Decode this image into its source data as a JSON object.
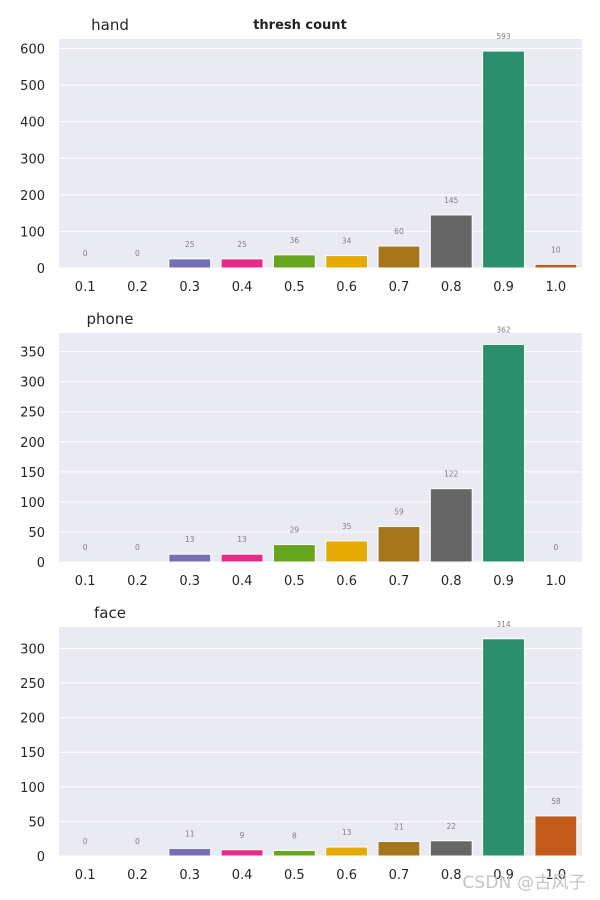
{
  "figure_title": "thresh count",
  "watermark": "CSDN @古风子",
  "colors": {
    "plot_background": "#eaeaf2",
    "grid": "#ffffff",
    "bar_edge": "#ffffff",
    "bars": [
      "#1b9e77",
      "#d95f02",
      "#7570b3",
      "#e7298a",
      "#66a61e",
      "#e6ab02",
      "#a6761d",
      "#666666",
      "#2b8f6e",
      "#c25b1a"
    ]
  },
  "chart_data": [
    {
      "type": "bar",
      "title": "hand",
      "categories": [
        "0.1",
        "0.2",
        "0.3",
        "0.4",
        "0.5",
        "0.6",
        "0.7",
        "0.8",
        "0.9",
        "1.0"
      ],
      "values": [
        0,
        0,
        25,
        25,
        36,
        34,
        60,
        145,
        593,
        10
      ],
      "value_labels": [
        "0",
        "0",
        "25",
        "25",
        "36",
        "34",
        "60",
        "145",
        "593",
        "10"
      ],
      "yticks": [
        0,
        100,
        200,
        300,
        400,
        500,
        600
      ],
      "ytick_labels": [
        "0",
        "100",
        "200",
        "300",
        "400",
        "500",
        "600"
      ],
      "ylim": [
        0,
        626
      ],
      "xlabel": "",
      "ylabel": ""
    },
    {
      "type": "bar",
      "title": "phone",
      "categories": [
        "0.1",
        "0.2",
        "0.3",
        "0.4",
        "0.5",
        "0.6",
        "0.7",
        "0.8",
        "0.9",
        "1.0"
      ],
      "values": [
        0,
        0,
        13,
        13,
        29,
        35,
        59,
        122,
        362,
        0
      ],
      "value_labels": [
        "0",
        "0",
        "13",
        "13",
        "29",
        "35",
        "59",
        "122",
        "362",
        "0"
      ],
      "yticks": [
        0,
        50,
        100,
        150,
        200,
        250,
        300,
        350
      ],
      "ytick_labels": [
        "0",
        "50",
        "100",
        "150",
        "200",
        "250",
        "300",
        "350"
      ],
      "ylim": [
        0,
        381
      ],
      "xlabel": "",
      "ylabel": ""
    },
    {
      "type": "bar",
      "title": "face",
      "categories": [
        "0.1",
        "0.2",
        "0.3",
        "0.4",
        "0.5",
        "0.6",
        "0.7",
        "0.8",
        "0.9",
        "1.0"
      ],
      "values": [
        0,
        0,
        11,
        9,
        8,
        13,
        21,
        22,
        314,
        58
      ],
      "value_labels": [
        "0",
        "0",
        "11",
        "9",
        "8",
        "13",
        "21",
        "22",
        "314",
        "58"
      ],
      "yticks": [
        0,
        50,
        100,
        150,
        200,
        250,
        300
      ],
      "ytick_labels": [
        "0",
        "50",
        "100",
        "150",
        "200",
        "250",
        "300"
      ],
      "ylim": [
        0,
        331
      ],
      "xlabel": "",
      "ylabel": ""
    }
  ]
}
